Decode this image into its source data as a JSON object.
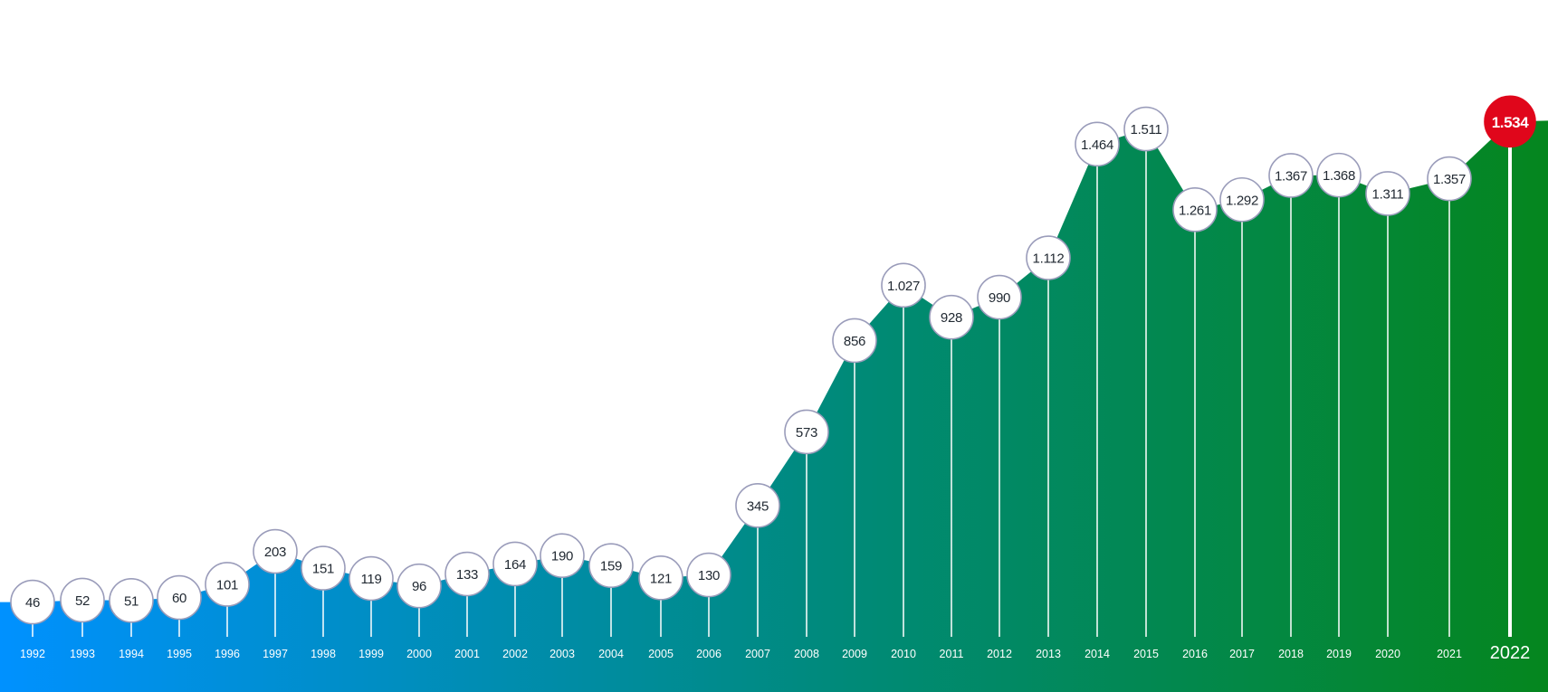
{
  "chart_data": {
    "type": "area",
    "title": "",
    "xlabel": "",
    "ylabel": "",
    "ylim": [
      0,
      1600
    ],
    "grid": false,
    "legend": "none",
    "highlight_index": 30,
    "colors": {
      "area_start": "#0091ff",
      "area_mid": "#008a78",
      "area_end": "#05861e",
      "bubble_fill": "#ffffff",
      "bubble_stroke": "#9a9cba",
      "highlight_fill": "#e0061b",
      "stem": "#ffffff"
    },
    "x": [
      "1992",
      "1993",
      "1994",
      "1995",
      "1996",
      "1997",
      "1998",
      "1999",
      "2000",
      "2001",
      "2002",
      "2003",
      "2004",
      "2005",
      "2006",
      "2007",
      "2008",
      "2009",
      "2010",
      "2011",
      "2012",
      "2013",
      "2014",
      "2015",
      "2016",
      "2017",
      "2018",
      "2019",
      "2020",
      "2021",
      "2022"
    ],
    "values": [
      46,
      52,
      51,
      60,
      101,
      203,
      151,
      119,
      96,
      133,
      164,
      190,
      159,
      121,
      130,
      345,
      573,
      856,
      1027,
      928,
      990,
      1112,
      1464,
      1511,
      1261,
      1292,
      1367,
      1368,
      1311,
      1357,
      1534
    ],
    "value_labels": [
      "46",
      "52",
      "51",
      "60",
      "101",
      "203",
      "151",
      "119",
      "96",
      "133",
      "164",
      "190",
      "159",
      "121",
      "130",
      "345",
      "573",
      "856",
      "1.027",
      "928",
      "990",
      "1.112",
      "1.464",
      "1.511",
      "1.261",
      "1.292",
      "1.367",
      "1.368",
      "1.311",
      "1.357",
      "1.534"
    ]
  }
}
